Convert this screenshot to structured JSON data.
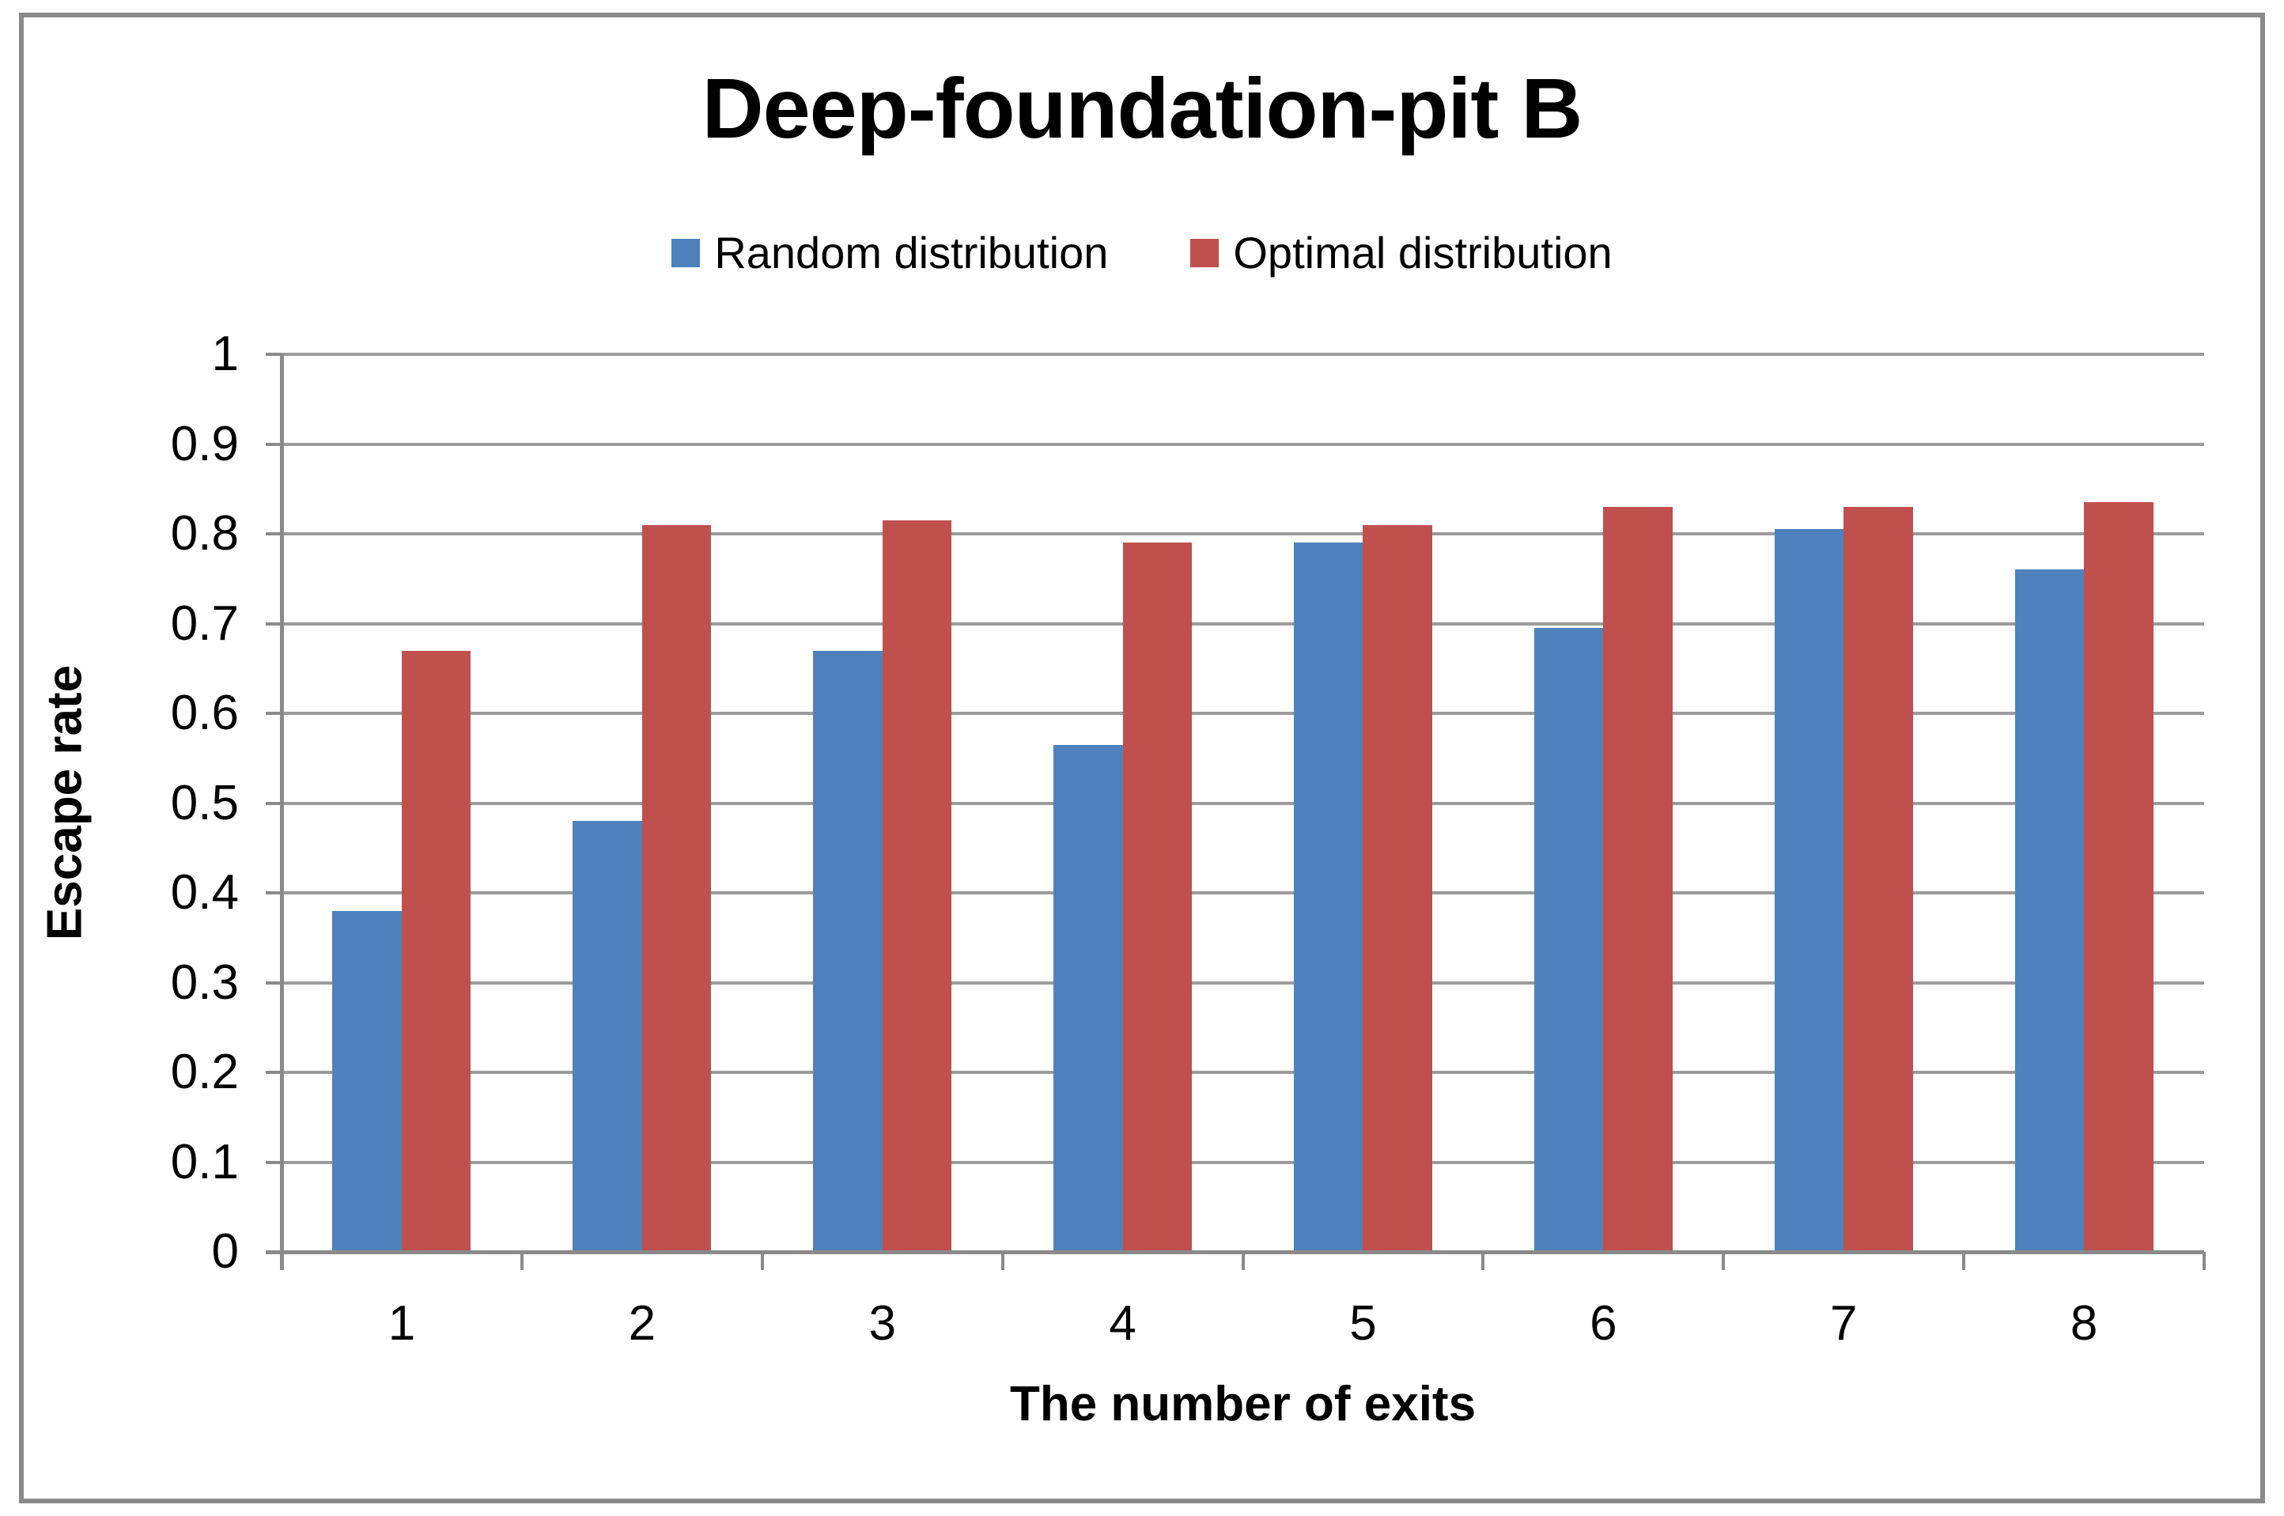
{
  "figure": {
    "title": "Deep-foundation-pit B"
  },
  "legend": {
    "items": [
      {
        "label": "Random distribution",
        "color": "#4F81BD"
      },
      {
        "label": "Optimal distribution",
        "color": "#C0504D"
      }
    ]
  },
  "chart_data": {
    "type": "bar",
    "title": "Deep-foundation-pit B",
    "categories": [
      "1",
      "2",
      "3",
      "4",
      "5",
      "6",
      "7",
      "8"
    ],
    "series": [
      {
        "name": "Random distribution",
        "color": "#4F81BD",
        "values": [
          0.38,
          0.48,
          0.67,
          0.565,
          0.79,
          0.695,
          0.805,
          0.76
        ]
      },
      {
        "name": "Optimal distribution",
        "color": "#C0504D",
        "values": [
          0.67,
          0.81,
          0.815,
          0.79,
          0.81,
          0.83,
          0.83,
          0.835
        ]
      }
    ],
    "xlabel": "The number of exits",
    "ylabel": "Escape rate",
    "ylim": [
      0,
      1
    ],
    "ytick_step": 0.1,
    "yticks": [
      {
        "label": "1",
        "value": 1.0
      },
      {
        "label": "0.9",
        "value": 0.9
      },
      {
        "label": "0.8",
        "value": 0.8
      },
      {
        "label": "0.7",
        "value": 0.7
      },
      {
        "label": "0.6",
        "value": 0.6
      },
      {
        "label": "0.5",
        "value": 0.5
      },
      {
        "label": "0.4",
        "value": 0.4
      },
      {
        "label": "0.3",
        "value": 0.3
      },
      {
        "label": "0.2",
        "value": 0.2
      },
      {
        "label": "0.1",
        "value": 0.1
      },
      {
        "label": "0",
        "value": 0.0
      }
    ],
    "grid": true,
    "legend_position": "top"
  },
  "colors": {
    "background": "#FFFFFF",
    "text": "#000000",
    "gridline": "#9B9B9B",
    "axis": "#8A8A8A",
    "frame_border": "#8A8A8A"
  }
}
